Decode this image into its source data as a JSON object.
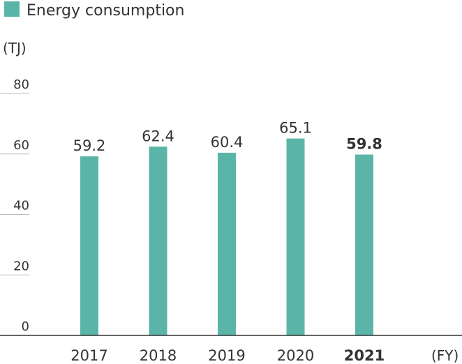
{
  "chart_data": {
    "type": "bar",
    "legend": {
      "label": "Energy consumption",
      "placement": "top-left"
    },
    "ylabel": "(TJ)",
    "xlabel": "(FY)",
    "categories": [
      "2017",
      "2018",
      "2019",
      "2020",
      "2021"
    ],
    "values": [
      59.2,
      62.4,
      60.4,
      65.1,
      59.8
    ],
    "value_labels": [
      "59.2",
      "62.4",
      "60.4",
      "65.1",
      "59.8"
    ],
    "highlight_index": 4,
    "ylim": [
      0,
      80
    ],
    "yticks": [
      0,
      20,
      40,
      60,
      80
    ],
    "grid": false,
    "colors": {
      "bar": "#5ab5a8",
      "axis": "#333333",
      "tick": "#bbbbbb"
    }
  }
}
